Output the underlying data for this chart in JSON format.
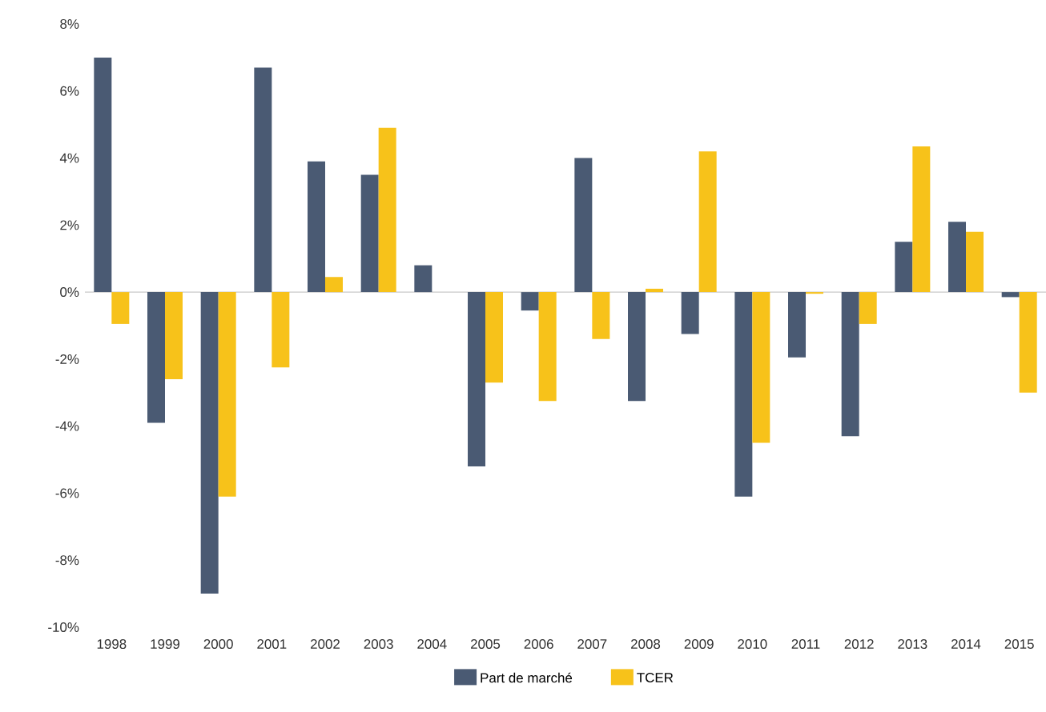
{
  "chart_data": {
    "type": "bar",
    "categories": [
      "1998",
      "1999",
      "2000",
      "2001",
      "2002",
      "2003",
      "2004",
      "2005",
      "2006",
      "2007",
      "2008",
      "2009",
      "2010",
      "2011",
      "2012",
      "2013",
      "2014",
      "2015"
    ],
    "series": [
      {
        "name": "Part de marché",
        "color": "#4a5a73",
        "values": [
          7.0,
          -3.9,
          -9.0,
          6.7,
          3.9,
          3.5,
          0.8,
          -5.2,
          -0.55,
          4.0,
          -3.25,
          -1.25,
          -6.1,
          -1.95,
          -4.3,
          1.5,
          2.1,
          -0.15
        ]
      },
      {
        "name": "TCER",
        "color": "#f7c21a",
        "values": [
          -0.95,
          -2.6,
          -6.1,
          -2.25,
          0.45,
          4.9,
          0.0,
          -2.7,
          -3.25,
          -1.4,
          0.1,
          4.2,
          -4.5,
          -0.05,
          -0.95,
          4.35,
          1.8,
          -3.0
        ]
      }
    ],
    "ylim": [
      -10,
      8
    ],
    "yticks": [
      {
        "value": -10,
        "label": "-10%"
      },
      {
        "value": -8,
        "label": "-8%"
      },
      {
        "value": -6,
        "label": "-6%"
      },
      {
        "value": -4,
        "label": "-4%"
      },
      {
        "value": -2,
        "label": "-2%"
      },
      {
        "value": 0,
        "label": "0%"
      },
      {
        "value": 2,
        "label": "2%"
      },
      {
        "value": 4,
        "label": "4%"
      },
      {
        "value": 6,
        "label": "6%"
      },
      {
        "value": 8,
        "label": "8%"
      }
    ],
    "ref_lines": [
      {
        "axis": "y",
        "value": 0,
        "color": "#c8c8c8"
      }
    ],
    "legend": "bottom"
  }
}
